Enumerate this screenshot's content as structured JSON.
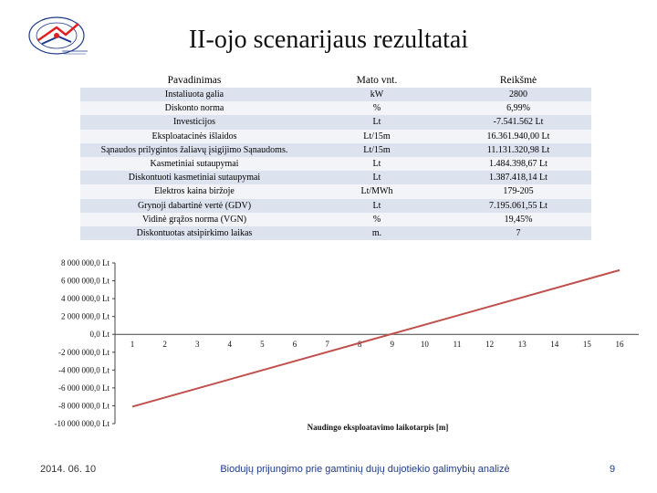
{
  "slide": {
    "title": "II-ojo scenarijaus rezultatai",
    "footer_date": "2014. 06. 10",
    "footer_text": "Biodujų prijungimo prie gamtinių dujų dujotiekio galimybių analizė",
    "page_number": "9"
  },
  "table": {
    "headers": [
      "Pavadinimas",
      "Mato vnt.",
      "Reikšmė"
    ],
    "rows": [
      [
        "Instaliuota galia",
        "kW",
        "2800"
      ],
      [
        "Diskonto norma",
        "%",
        "6,99%"
      ],
      [
        "Investicijos",
        "Lt",
        "-7.541.562 Lt"
      ],
      [
        "Eksploatacinės išlaidos",
        "Lt/15m",
        "16.361.940,00 Lt"
      ],
      [
        "Sąnaudos prilygintos žaliavų įsigijimo Sąnaudoms.",
        "Lt/15m",
        "11.131.320,98 Lt"
      ],
      [
        "Kasmetiniai sutaupymai",
        "Lt",
        "1.484.398,67 Lt"
      ],
      [
        "Diskontuoti kasmetiniai sutaupymai",
        "Lt",
        "1.387.418,14 Lt"
      ],
      [
        "Elektros kaina biržoje",
        "Lt/MWh",
        "179-205"
      ],
      [
        "Grynoji dabartinė vertė (GDV)",
        "Lt",
        "7.195.061,55 Lt"
      ],
      [
        "Vidinė grąžos norma (VGN)",
        "%",
        "19,45%"
      ],
      [
        "Diskontuotas atsipirkimo laikas",
        "m.",
        "7"
      ]
    ]
  },
  "chart_data": {
    "type": "line",
    "y_ticks": [
      "8 000 000,0 Lt",
      "6 000 000,0 Lt",
      "4 000 000,0 Lt",
      "2 000 000,0 Lt",
      "0,0 Lt",
      "-2 000 000,0 Lt",
      "-4 000 000,0 Lt",
      "-6 000 000,0 Lt",
      "-8 000 000,0 Lt",
      "-10 000 000,0 Lt"
    ],
    "x_ticks": [
      "1",
      "2",
      "3",
      "4",
      "5",
      "6",
      "7",
      "8",
      "9",
      "10",
      "11",
      "12",
      "13",
      "14",
      "15",
      "16"
    ],
    "xlabel": "Naudingo eksploatavimo laikotarpis [m]",
    "ylim": [
      -10000000,
      8000000
    ],
    "x": [
      1,
      16
    ],
    "values": [
      -8100000,
      7195061.55
    ],
    "line_color": "#c0504d",
    "grid": false
  },
  "logo": {
    "icon": "institute-logo-icon",
    "primary_color": "#1f3a8a",
    "accent_color": "#e02020"
  }
}
